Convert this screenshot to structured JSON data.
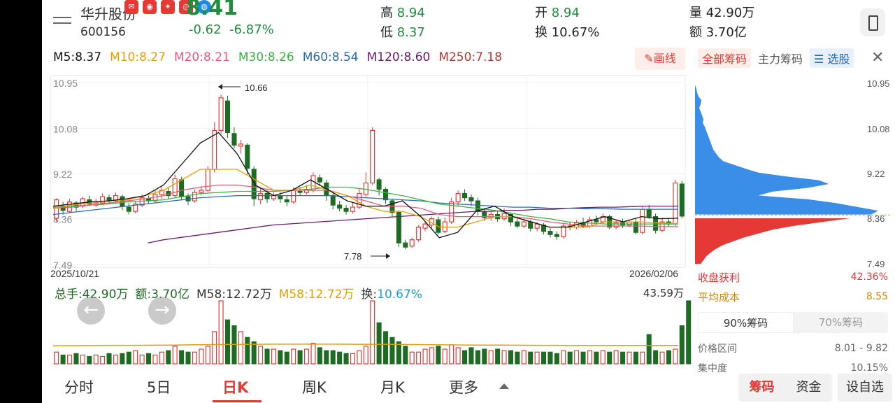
{
  "header": {
    "name": "华升股份",
    "code": "600156",
    "price": "8.41",
    "change": "-0.62",
    "change_pct": "-6.87%",
    "notifications": [
      "",
      "",
      "",
      "",
      ""
    ],
    "quotes": [
      {
        "label": "高",
        "value": "8.94"
      },
      {
        "label": "低",
        "value": "8.37"
      },
      {
        "label": "开",
        "value": "8.94"
      },
      {
        "label": "换",
        "value": "10.67%"
      },
      {
        "label": "量",
        "value": "42.90万"
      },
      {
        "label": "额",
        "value": "3.70亿"
      }
    ]
  },
  "ma": [
    {
      "label": "M5:8.37",
      "color": "#111111"
    },
    {
      "label": "M10:8.27",
      "color": "#e6a000"
    },
    {
      "label": "M20:8.21",
      "color": "#e75a78"
    },
    {
      "label": "M30:8.26",
      "color": "#3cb043"
    },
    {
      "label": "M60:8.54",
      "color": "#2b6cb0"
    },
    {
      "label": "M120:8.60",
      "color": "#6a1b6a"
    },
    {
      "label": "M250:7.18",
      "color": "#b03a2e"
    }
  ],
  "draw_label": "画线",
  "chart_data": {
    "type": "candlestick",
    "price_ticks": [
      "10.95",
      "10.08",
      "9.22",
      "8.36",
      "7.49"
    ],
    "price_range": [
      7.49,
      10.95
    ],
    "date_start": "2025/10/21",
    "date_end": "2026/02/06",
    "high_annotation": "10.66",
    "low_annotation": "7.78",
    "candles": [
      [
        8.37,
        8.72,
        8.75,
        8.3
      ],
      [
        8.6,
        8.52,
        8.68,
        8.44
      ],
      [
        8.5,
        8.68,
        8.74,
        8.47
      ],
      [
        8.66,
        8.58,
        8.7,
        8.5
      ],
      [
        8.6,
        8.74,
        8.78,
        8.56
      ],
      [
        8.72,
        8.64,
        8.8,
        8.6
      ],
      [
        8.62,
        8.66,
        8.74,
        8.58
      ],
      [
        8.66,
        8.78,
        8.84,
        8.62
      ],
      [
        8.76,
        8.7,
        8.82,
        8.64
      ],
      [
        8.7,
        8.8,
        8.86,
        8.66
      ],
      [
        8.78,
        8.6,
        8.82,
        8.52
      ],
      [
        8.58,
        8.5,
        8.66,
        8.44
      ],
      [
        8.5,
        8.64,
        8.7,
        8.46
      ],
      [
        8.62,
        8.76,
        8.82,
        8.58
      ],
      [
        8.74,
        8.7,
        8.8,
        8.64
      ],
      [
        8.7,
        8.82,
        8.9,
        8.66
      ],
      [
        8.82,
        8.9,
        8.96,
        8.74
      ],
      [
        8.88,
        8.8,
        8.94,
        8.74
      ],
      [
        8.8,
        9.12,
        9.2,
        8.76
      ],
      [
        9.1,
        8.78,
        9.16,
        8.72
      ],
      [
        8.78,
        8.7,
        8.84,
        8.62
      ],
      [
        8.7,
        8.86,
        8.92,
        8.66
      ],
      [
        8.86,
        8.9,
        8.98,
        8.8
      ],
      [
        8.9,
        9.3,
        9.36,
        8.86
      ],
      [
        9.3,
        10.04,
        10.2,
        9.24
      ],
      [
        10.04,
        10.66,
        10.72,
        9.98
      ],
      [
        10.6,
        10.0,
        10.7,
        9.9
      ],
      [
        9.98,
        9.76,
        10.1,
        9.7
      ],
      [
        9.74,
        9.78,
        9.86,
        9.6
      ],
      [
        9.76,
        9.32,
        9.8,
        9.2
      ],
      [
        9.3,
        8.74,
        9.36,
        8.6
      ],
      [
        8.72,
        8.84,
        8.96,
        8.64
      ],
      [
        8.84,
        8.74,
        8.9,
        8.66
      ],
      [
        8.74,
        8.8,
        8.86,
        8.7
      ],
      [
        8.8,
        8.74,
        8.86,
        8.66
      ],
      [
        8.72,
        8.68,
        8.8,
        8.6
      ],
      [
        8.68,
        8.9,
        8.96,
        8.64
      ],
      [
        8.88,
        8.86,
        8.96,
        8.8
      ],
      [
        8.86,
        8.92,
        9.0,
        8.82
      ],
      [
        8.9,
        9.18,
        9.24,
        8.86
      ],
      [
        9.14,
        9.06,
        9.2,
        8.98
      ],
      [
        9.04,
        8.8,
        9.1,
        8.7
      ],
      [
        8.8,
        8.62,
        8.84,
        8.54
      ],
      [
        8.62,
        8.56,
        8.7,
        8.5
      ],
      [
        8.56,
        8.5,
        8.62,
        8.44
      ],
      [
        8.5,
        8.58,
        8.66,
        8.46
      ],
      [
        8.58,
        8.84,
        8.92,
        8.54
      ],
      [
        8.82,
        9.04,
        9.24,
        8.78
      ],
      [
        9.04,
        10.04,
        10.1,
        9.0
      ],
      [
        9.1,
        8.92,
        9.14,
        8.8
      ],
      [
        8.92,
        8.72,
        8.96,
        8.64
      ],
      [
        8.7,
        8.48,
        8.74,
        8.4
      ],
      [
        8.48,
        7.9,
        8.52,
        7.82
      ],
      [
        7.9,
        7.82,
        7.96,
        7.78
      ],
      [
        7.84,
        7.96,
        8.0,
        7.8
      ],
      [
        7.96,
        8.2,
        8.24,
        7.92
      ],
      [
        8.18,
        8.26,
        8.32,
        8.12
      ],
      [
        8.24,
        8.36,
        8.4,
        8.18
      ],
      [
        8.34,
        8.1,
        8.4,
        8.06
      ],
      [
        8.12,
        8.3,
        8.38,
        8.08
      ],
      [
        8.3,
        8.68,
        8.76,
        8.26
      ],
      [
        8.68,
        8.84,
        8.9,
        8.6
      ],
      [
        8.84,
        8.76,
        8.92,
        8.7
      ],
      [
        8.76,
        8.7,
        8.82,
        8.6
      ],
      [
        8.7,
        8.5,
        8.76,
        8.42
      ],
      [
        8.5,
        8.38,
        8.56,
        8.32
      ],
      [
        8.38,
        8.44,
        8.5,
        8.32
      ],
      [
        8.44,
        8.36,
        8.52,
        8.3
      ],
      [
        8.36,
        8.46,
        8.56,
        8.32
      ],
      [
        8.44,
        8.3,
        8.48,
        8.22
      ],
      [
        8.3,
        8.22,
        8.36,
        8.18
      ],
      [
        8.22,
        8.3,
        8.38,
        8.18
      ],
      [
        8.3,
        8.18,
        8.34,
        8.12
      ],
      [
        8.18,
        8.26,
        8.3,
        8.12
      ],
      [
        8.24,
        8.12,
        8.28,
        8.06
      ],
      [
        8.12,
        8.06,
        8.18,
        8.0
      ],
      [
        8.06,
        8.02,
        8.12,
        7.96
      ],
      [
        8.02,
        8.22,
        8.28,
        7.98
      ],
      [
        8.22,
        8.2,
        8.3,
        8.14
      ],
      [
        8.2,
        8.28,
        8.34,
        8.16
      ],
      [
        8.28,
        8.22,
        8.38,
        8.18
      ],
      [
        8.22,
        8.34,
        8.4,
        8.18
      ],
      [
        8.34,
        8.3,
        8.42,
        8.24
      ],
      [
        8.3,
        8.4,
        8.46,
        8.26
      ],
      [
        8.4,
        8.2,
        8.44,
        8.16
      ],
      [
        8.2,
        8.28,
        8.34,
        8.16
      ],
      [
        8.28,
        8.24,
        8.36,
        8.18
      ],
      [
        8.24,
        8.3,
        8.34,
        8.2
      ],
      [
        8.3,
        8.1,
        8.36,
        8.06
      ],
      [
        8.1,
        8.54,
        8.6,
        8.06
      ],
      [
        8.54,
        8.4,
        8.62,
        8.36
      ],
      [
        8.4,
        8.14,
        8.46,
        8.08
      ],
      [
        8.14,
        8.3,
        8.38,
        8.1
      ],
      [
        8.3,
        8.26,
        8.36,
        8.2
      ],
      [
        8.26,
        9.04,
        9.1,
        8.22
      ],
      [
        9.02,
        8.41,
        9.08,
        8.37
      ]
    ],
    "ma5": [
      8.6,
      8.64,
      8.68,
      8.7,
      8.74,
      8.8,
      9.0,
      9.4,
      9.8,
      10.0,
      9.6,
      9.0,
      8.8,
      8.9,
      9.1,
      8.9,
      8.7,
      8.6,
      8.6,
      8.7,
      8.4,
      8.0,
      8.1,
      8.5,
      8.6,
      8.4,
      8.3,
      8.2,
      8.2,
      8.3,
      8.4,
      8.3,
      8.4,
      8.36,
      8.37
    ],
    "ma10": [
      8.56,
      8.62,
      8.66,
      8.7,
      8.72,
      8.8,
      8.9,
      9.1,
      9.3,
      9.3,
      9.3,
      9.1,
      8.9,
      8.9,
      9.0,
      8.9,
      8.8,
      8.6,
      8.5,
      8.5,
      8.4,
      8.2,
      8.2,
      8.3,
      8.4,
      8.4,
      8.3,
      8.2,
      8.2,
      8.2,
      8.3,
      8.3,
      8.3,
      8.28,
      8.27
    ],
    "ma20": [
      8.56,
      8.58,
      8.62,
      8.66,
      8.7,
      8.74,
      8.8,
      8.9,
      8.96,
      9.0,
      9.0,
      8.96,
      8.9,
      8.9,
      8.9,
      8.9,
      8.8,
      8.7,
      8.6,
      8.6,
      8.56,
      8.44,
      8.4,
      8.4,
      8.4,
      8.4,
      8.36,
      8.3,
      8.26,
      8.22,
      8.22,
      8.22,
      8.22,
      8.21,
      8.21
    ],
    "ma30": [
      8.58,
      8.6,
      8.62,
      8.64,
      8.68,
      8.7,
      8.72,
      8.78,
      8.84,
      8.86,
      8.88,
      8.88,
      8.88,
      8.9,
      8.92,
      8.96,
      8.96,
      8.92,
      8.86,
      8.8,
      8.72,
      8.64,
      8.6,
      8.56,
      8.52,
      8.46,
      8.4,
      8.36,
      8.3,
      8.28,
      8.26,
      8.26,
      8.26,
      8.26,
      8.26
    ],
    "ma60": [
      8.44,
      8.48,
      8.52,
      8.56,
      8.6,
      8.64,
      8.68,
      8.72,
      8.76,
      8.78,
      8.8,
      8.8,
      8.8,
      8.8,
      8.8,
      8.8,
      8.78,
      8.76,
      8.74,
      8.72,
      8.7,
      8.66,
      8.64,
      8.62,
      8.6,
      8.58,
      8.58,
      8.56,
      8.56,
      8.55,
      8.55,
      8.54,
      8.54,
      8.54,
      8.54
    ],
    "ma120": [
      7.9,
      7.96,
      8.0,
      8.04,
      8.08,
      8.12,
      8.16,
      8.2,
      8.24,
      8.26,
      8.28,
      8.3,
      8.32,
      8.34,
      8.36,
      8.38,
      8.4,
      8.42,
      8.44,
      8.46,
      8.48,
      8.5,
      8.5,
      8.52,
      8.52,
      8.54,
      8.54,
      8.56,
      8.57,
      8.58,
      8.58,
      8.59,
      8.6,
      8.6,
      8.6
    ],
    "volume": {
      "max_label": "43.59万",
      "values": [
        8,
        6,
        6,
        7,
        6,
        5,
        6,
        5,
        7,
        6,
        7,
        8,
        9,
        6,
        7,
        6,
        8,
        9,
        12,
        9,
        8,
        8,
        10,
        12,
        22,
        43,
        30,
        26,
        22,
        18,
        15,
        12,
        10,
        10,
        9,
        8,
        10,
        9,
        10,
        14,
        11,
        9,
        9,
        8,
        7,
        7,
        9,
        12,
        43,
        28,
        22,
        18,
        15,
        12,
        8,
        8,
        10,
        11,
        12,
        10,
        13,
        11,
        9,
        11,
        9,
        10,
        9,
        10,
        9,
        9,
        8,
        9,
        8,
        8,
        8,
        8,
        7,
        9,
        8,
        9,
        8,
        9,
        8,
        9,
        8,
        9,
        8,
        8,
        8,
        8,
        20,
        9,
        8,
        9,
        10,
        26,
        43
      ],
      "ma_line": [
        12.5,
        12.6,
        12.7,
        12.8,
        12.8,
        12.9,
        13.0,
        13.2,
        13.3,
        13.4,
        13.5,
        13.6,
        13.6,
        13.6,
        13.6,
        13.5,
        13.5,
        13.4,
        13.3,
        13.2,
        13.1,
        13.0,
        13.0,
        12.9,
        12.8,
        12.8,
        12.7,
        12.7,
        12.7,
        12.7,
        12.7,
        12.72
      ]
    }
  },
  "chips": {
    "tabs": [
      "全部筹码",
      "主力筹码",
      "选股"
    ],
    "price_ticks": [
      "10.95",
      "10.08",
      "9.22",
      "8.36",
      "7.49"
    ],
    "distribution": [
      0,
      0,
      0,
      2,
      3,
      5,
      9,
      8,
      6,
      8,
      10,
      12,
      11,
      14,
      16,
      18,
      20,
      22,
      24,
      26,
      30,
      34,
      40,
      56,
      72,
      90,
      130,
      176,
      190,
      160,
      110,
      90,
      160,
      200,
      230,
      260,
      250,
      220,
      180,
      140,
      110,
      90,
      70,
      55,
      40,
      30,
      22,
      16,
      12,
      8
    ],
    "stats": {
      "profit_label": "收盘获利",
      "profit_value": "42.36%",
      "cost_label": "平均成本",
      "cost_value": "8.55",
      "pct_tabs": [
        "90%筹码",
        "70%筹码"
      ],
      "range_label": "价格区间",
      "range_value": "8.01 - 9.82",
      "concentration_label": "集中度",
      "concentration_value": "10.15%"
    }
  },
  "volume_info": {
    "total": "总手:42.90万",
    "amount": "额:3.70亿",
    "m58a": "M58:12.72万",
    "m58b": "M58:12.72万",
    "turnover_label": "换:",
    "turnover_value": "10.67%"
  },
  "bottom_tabs": [
    "分时",
    "5日",
    "日K",
    "周K",
    "月K",
    "更多"
  ],
  "bottom_right": {
    "chips": "筹码",
    "funds": "资金",
    "custom": "设自选"
  },
  "colors": {
    "up": "#e53935",
    "down": "#1e6b23",
    "accent": "#e53935"
  }
}
